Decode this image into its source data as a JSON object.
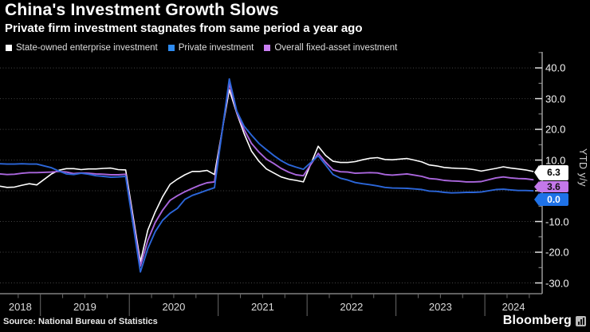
{
  "chart_data": {
    "type": "line",
    "title": "China's Investment Growth Slows",
    "subtitle": "Private firm investment stagnates from same period a year ago",
    "ylabel": "YTD y/y",
    "legend_position": "top",
    "grid": "horizontal dotted",
    "x_months": [
      "2018-07",
      "2018-08",
      "2018-09",
      "2018-10",
      "2018-11",
      "2018-12",
      "2019-02",
      "2019-03",
      "2019-04",
      "2019-05",
      "2019-06",
      "2019-07",
      "2019-08",
      "2019-09",
      "2019-10",
      "2019-11",
      "2019-12",
      "2020-02",
      "2020-03",
      "2020-04",
      "2020-05",
      "2020-06",
      "2020-07",
      "2020-08",
      "2020-09",
      "2020-10",
      "2020-11",
      "2020-12",
      "2021-02",
      "2021-03",
      "2021-04",
      "2021-05",
      "2021-06",
      "2021-07",
      "2021-08",
      "2021-09",
      "2021-10",
      "2021-11",
      "2021-12",
      "2022-02",
      "2022-03",
      "2022-04",
      "2022-05",
      "2022-06",
      "2022-07",
      "2022-08",
      "2022-09",
      "2022-10",
      "2022-11",
      "2022-12",
      "2023-02",
      "2023-03",
      "2023-04",
      "2023-05",
      "2023-06",
      "2023-07",
      "2023-08",
      "2023-09",
      "2023-10",
      "2023-11",
      "2023-12",
      "2024-02",
      "2024-03",
      "2024-04",
      "2024-05",
      "2024-06",
      "2024-07"
    ],
    "series": [
      {
        "name": "State-owned enterprise investment",
        "color": "#ffffff",
        "swatch": "#ffffff",
        "latest": "6.3",
        "values": [
          1.5,
          1.1,
          1.2,
          1.8,
          2.3,
          1.9,
          5.5,
          6.7,
          7.2,
          7.2,
          6.9,
          7.1,
          7.1,
          7.3,
          7.4,
          6.9,
          6.8,
          -23.1,
          -12.8,
          -6.9,
          -1.9,
          2.1,
          3.8,
          5.2,
          6.3,
          6.3,
          6.6,
          5.3,
          32.9,
          25.3,
          18.6,
          12.9,
          9.6,
          7.1,
          5.8,
          4.5,
          3.8,
          3.4,
          2.9,
          14.5,
          11.5,
          9.6,
          9.2,
          9.2,
          9.5,
          10.1,
          10.6,
          10.8,
          10.2,
          10.1,
          10.5,
          10.0,
          9.4,
          8.4,
          8.1,
          7.6,
          7.4,
          7.3,
          7.2,
          6.9,
          6.4,
          7.3,
          7.8,
          7.4,
          7.1,
          6.8,
          6.3
        ]
      },
      {
        "name": "Private investment",
        "color": "#2b66d9",
        "swatch": "#2e8bf0",
        "latest": "0.0",
        "values": [
          8.8,
          8.7,
          8.7,
          8.8,
          8.7,
          8.7,
          7.5,
          6.4,
          5.5,
          5.3,
          5.7,
          5.4,
          4.9,
          4.7,
          4.4,
          4.5,
          4.7,
          -26.4,
          -18.8,
          -13.3,
          -9.6,
          -7.3,
          -5.7,
          -2.8,
          -1.5,
          -0.7,
          0.2,
          1.0,
          36.4,
          26.0,
          21.0,
          18.1,
          15.4,
          13.4,
          11.5,
          9.8,
          8.5,
          7.7,
          7.0,
          11.4,
          8.4,
          5.3,
          4.1,
          3.5,
          2.7,
          2.3,
          2.0,
          1.6,
          1.1,
          0.9,
          0.8,
          0.6,
          0.4,
          -0.1,
          -0.2,
          -0.5,
          -0.7,
          -0.6,
          -0.5,
          -0.5,
          -0.4,
          0.4,
          0.5,
          0.3,
          0.1,
          0.1,
          0.0
        ]
      },
      {
        "name": "Overall fixed-asset investment",
        "color": "#aa66dd",
        "swatch": "#c97ef2",
        "latest": "3.6",
        "values": [
          5.5,
          5.3,
          5.4,
          5.7,
          5.9,
          5.9,
          6.1,
          6.3,
          6.1,
          5.6,
          5.8,
          5.7,
          5.5,
          5.4,
          5.2,
          5.2,
          5.4,
          -24.5,
          -16.1,
          -10.3,
          -6.3,
          -3.1,
          -1.6,
          -0.3,
          0.8,
          1.8,
          2.6,
          2.9,
          35.0,
          25.6,
          19.9,
          15.4,
          12.6,
          10.3,
          8.9,
          7.3,
          6.1,
          5.2,
          4.9,
          12.2,
          9.3,
          6.8,
          6.2,
          6.1,
          5.7,
          5.8,
          5.9,
          5.8,
          5.3,
          5.1,
          5.5,
          5.1,
          4.7,
          4.0,
          3.8,
          3.4,
          3.2,
          3.1,
          2.9,
          2.9,
          3.0,
          4.2,
          4.5,
          4.2,
          4.0,
          3.9,
          3.6
        ]
      }
    ],
    "y_ticks": {
      "major": [
        40,
        30,
        20,
        10,
        0,
        -10,
        -20,
        -30
      ],
      "minor": [
        45,
        35,
        25,
        15,
        5,
        -5,
        -15,
        -25
      ],
      "labels": [
        "40.0",
        "30.0",
        "20.0",
        "10.0",
        "-10.0",
        "-20.0",
        "-30.0"
      ]
    },
    "x_ticks": {
      "year_labels": [
        "2018",
        "2019",
        "2020",
        "2021",
        "2022",
        "2023",
        "2024"
      ],
      "year_dividers": [
        2019,
        2020,
        2021,
        2022,
        2023,
        2024
      ]
    },
    "xlim_decimal_years": [
      2018.545,
      2024.645
    ],
    "ylim": [
      -33.5,
      43.4
    ]
  },
  "end_labels": [
    {
      "text": "6.3",
      "bg": "#ffffff",
      "fg": "#000000"
    },
    {
      "text": "3.6",
      "bg": "#c478ea",
      "fg": "#111111"
    },
    {
      "text": "0.0",
      "bg": "#1f72e8",
      "fg": "#ffffff"
    }
  ],
  "footer": {
    "source": "Source: National Bureau of Statistics",
    "brand": "Bloomberg"
  }
}
